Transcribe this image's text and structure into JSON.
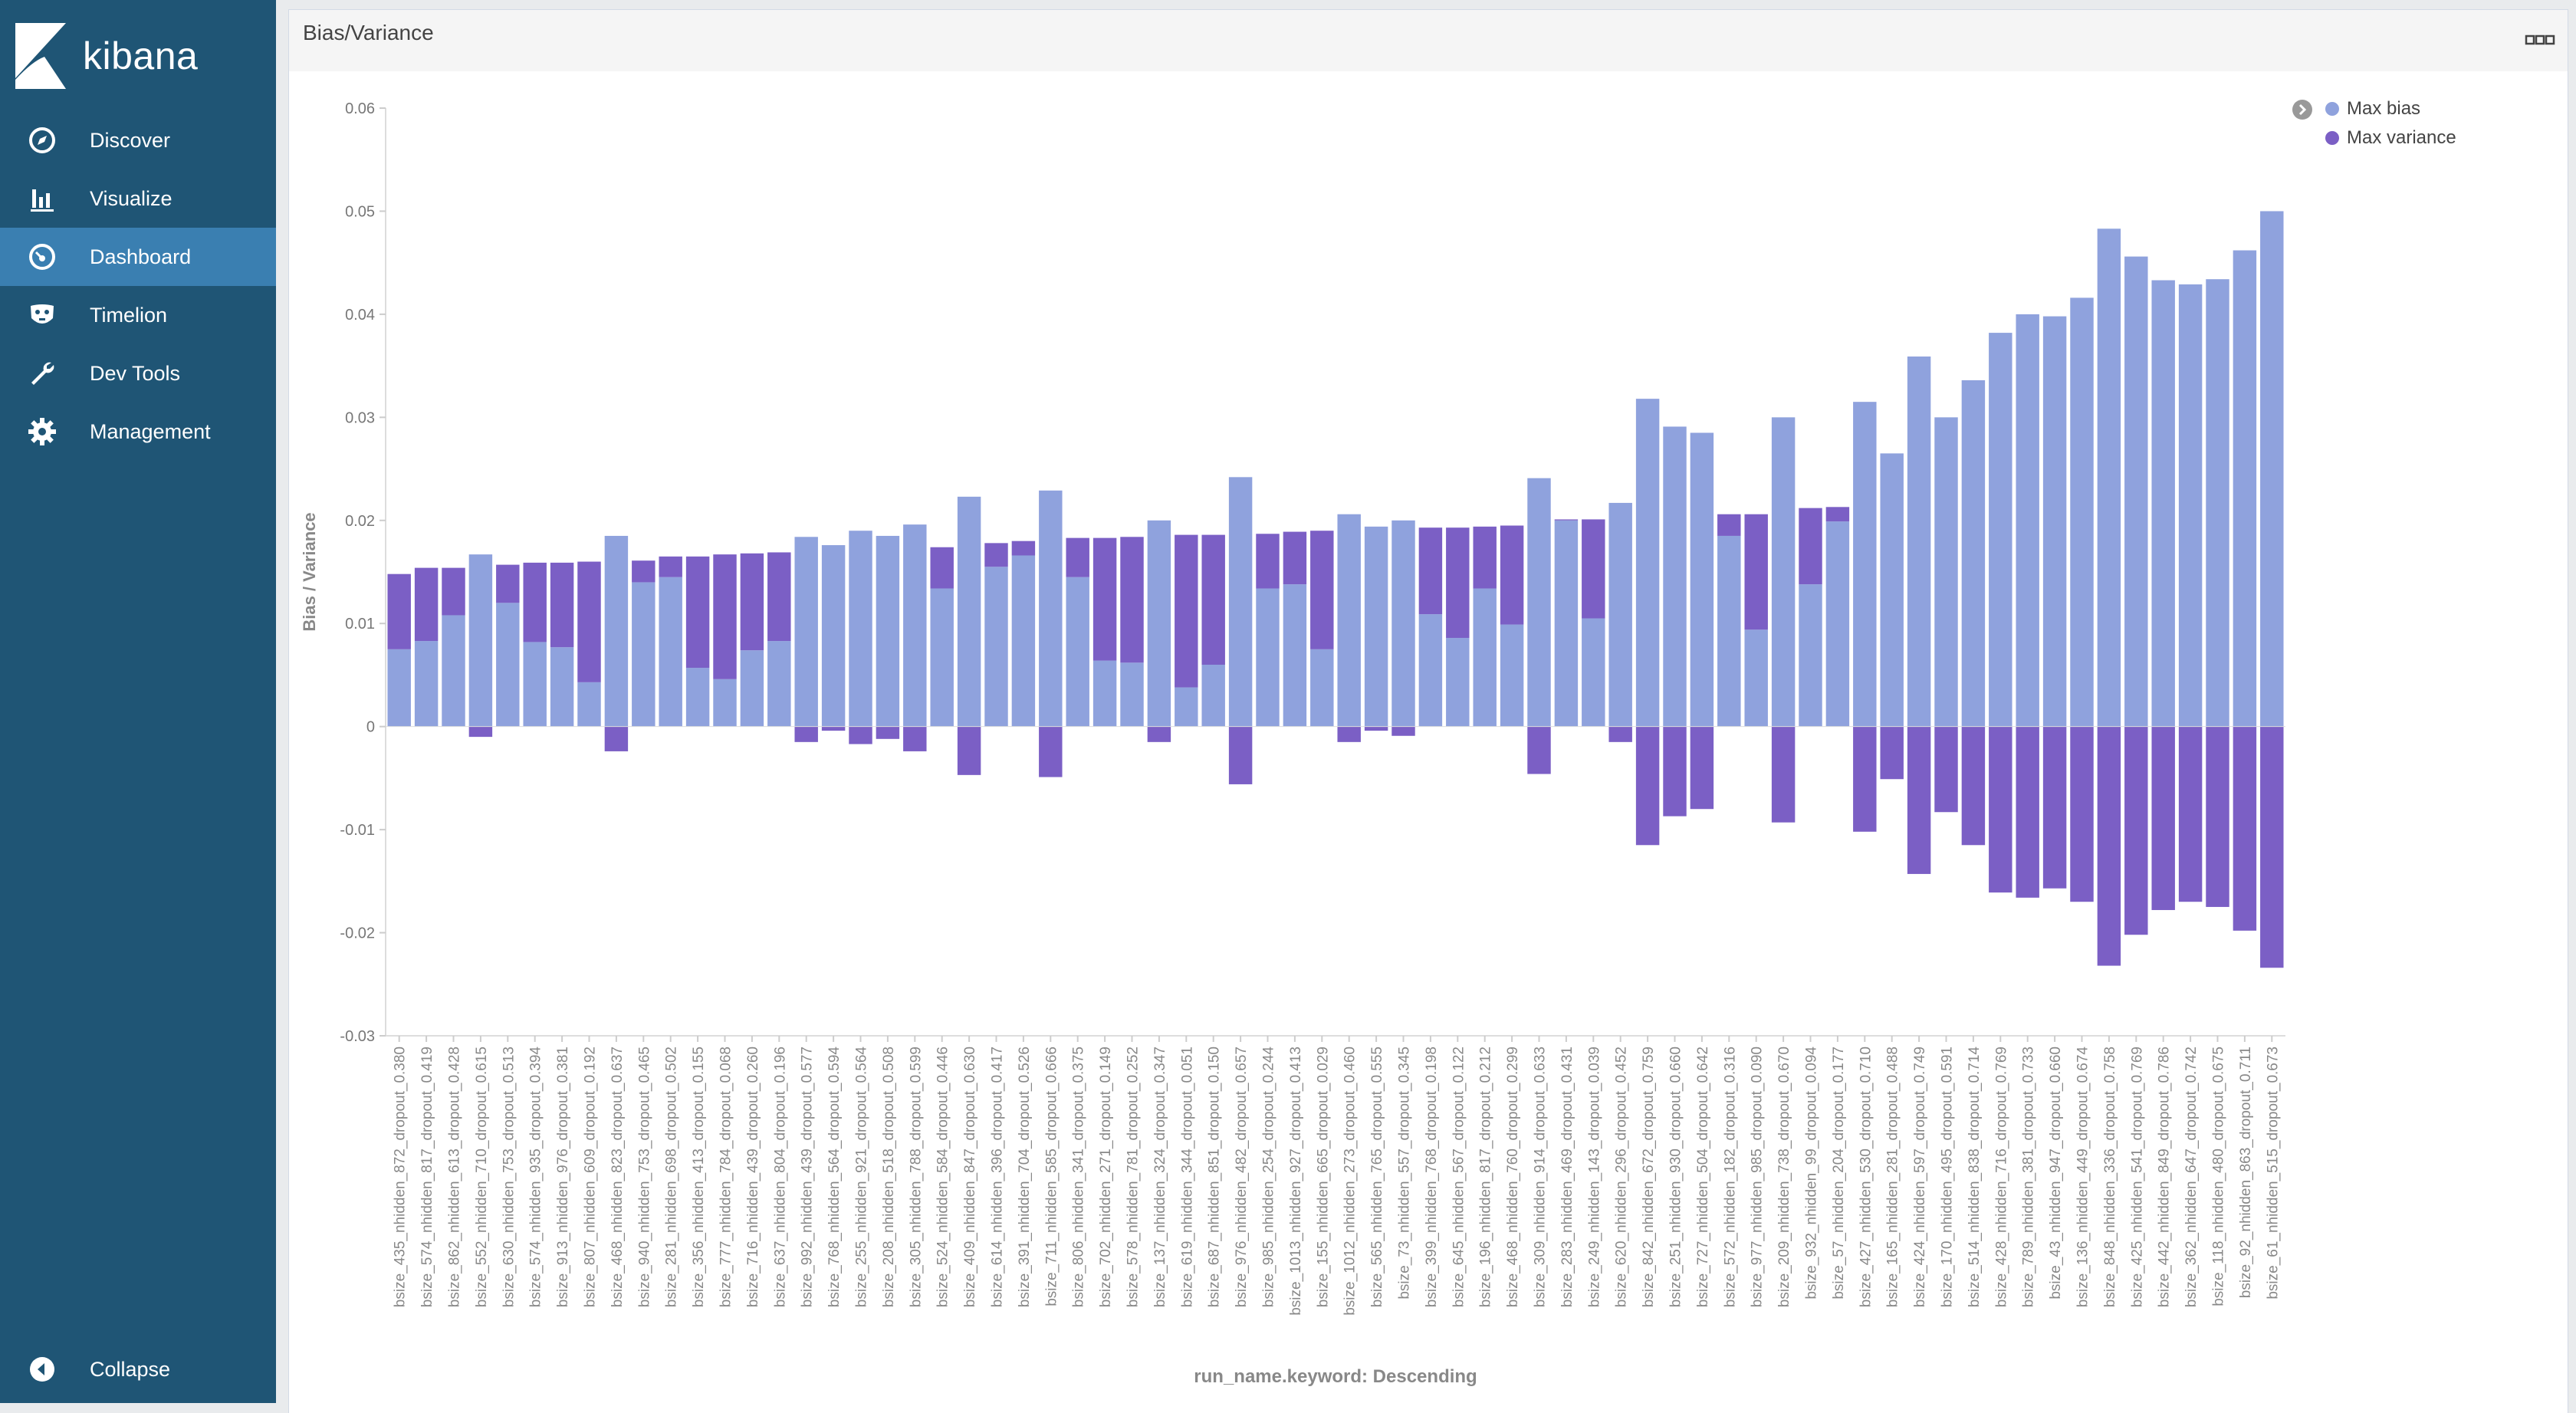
{
  "app": {
    "name": "kibana"
  },
  "sidebar": {
    "items": [
      {
        "label": "Discover",
        "icon": "compass-icon",
        "active": false
      },
      {
        "label": "Visualize",
        "icon": "bar-chart-icon",
        "active": false
      },
      {
        "label": "Dashboard",
        "icon": "dashboard-gauge-icon",
        "active": true
      },
      {
        "label": "Timelion",
        "icon": "timelion-mask-icon",
        "active": false
      },
      {
        "label": "Dev Tools",
        "icon": "wrench-icon",
        "active": false
      },
      {
        "label": "Management",
        "icon": "gear-icon",
        "active": false
      }
    ],
    "collapse_label": "Collapse"
  },
  "panel": {
    "title": "Bias/Variance"
  },
  "colors": {
    "max_bias": "#8fa2dd",
    "max_variance": "#7b5fc5",
    "sidebar": "#1f5575",
    "active": "#3a7fb1"
  },
  "chart_data": {
    "type": "bar",
    "title": "",
    "ylabel": "Bias / Variance",
    "xlabel": "run_name.keyword: Descending",
    "ylim": [
      -0.03,
      0.06
    ],
    "yticks": [
      0.06,
      0.05,
      0.04,
      0.03,
      0.02,
      0.01,
      0,
      -0.01,
      -0.02,
      -0.03
    ],
    "legend_position": "top-right",
    "categories": [
      "bsize_435_nhidden_872_dropout_0.380",
      "bsize_574_nhidden_817_dropout_0.419",
      "bsize_862_nhidden_613_dropout_0.428",
      "bsize_552_nhidden_710_dropout_0.615",
      "bsize_630_nhidden_753_dropout_0.513",
      "bsize_574_nhidden_935_dropout_0.394",
      "bsize_913_nhidden_976_dropout_0.381",
      "bsize_807_nhidden_609_dropout_0.192",
      "bsize_468_nhidden_823_dropout_0.637",
      "bsize_940_nhidden_753_dropout_0.465",
      "bsize_281_nhidden_698_dropout_0.502",
      "bsize_356_nhidden_413_dropout_0.155",
      "bsize_777_nhidden_784_dropout_0.068",
      "bsize_716_nhidden_439_dropout_0.260",
      "bsize_637_nhidden_804_dropout_0.196",
      "bsize_992_nhidden_439_dropout_0.577",
      "bsize_768_nhidden_564_dropout_0.594",
      "bsize_255_nhidden_921_dropout_0.564",
      "bsize_208_nhidden_518_dropout_0.508",
      "bsize_305_nhidden_788_dropout_0.599",
      "bsize_524_nhidden_584_dropout_0.446",
      "bsize_409_nhidden_847_dropout_0.630",
      "bsize_614_nhidden_396_dropout_0.417",
      "bsize_391_nhidden_704_dropout_0.526",
      "bsize_711_nhidden_585_dropout_0.666",
      "bsize_806_nhidden_341_dropout_0.375",
      "bsize_702_nhidden_271_dropout_0.149",
      "bsize_578_nhidden_781_dropout_0.252",
      "bsize_137_nhidden_324_dropout_0.347",
      "bsize_619_nhidden_344_dropout_0.051",
      "bsize_687_nhidden_851_dropout_0.150",
      "bsize_976_nhidden_482_dropout_0.657",
      "bsize_985_nhidden_254_dropout_0.244",
      "bsize_1013_nhidden_927_dropout_0.413",
      "bsize_155_nhidden_665_dropout_0.029",
      "bsize_1012_nhidden_273_dropout_0.460",
      "bsize_565_nhidden_765_dropout_0.555",
      "bsize_73_nhidden_557_dropout_0.345",
      "bsize_399_nhidden_768_dropout_0.198",
      "bsize_645_nhidden_567_dropout_0.122",
      "bsize_196_nhidden_817_dropout_0.212",
      "bsize_468_nhidden_760_dropout_0.299",
      "bsize_309_nhidden_914_dropout_0.633",
      "bsize_283_nhidden_469_dropout_0.431",
      "bsize_249_nhidden_143_dropout_0.039",
      "bsize_620_nhidden_296_dropout_0.452",
      "bsize_842_nhidden_672_dropout_0.759",
      "bsize_251_nhidden_930_dropout_0.660",
      "bsize_727_nhidden_504_dropout_0.642",
      "bsize_572_nhidden_182_dropout_0.316",
      "bsize_977_nhidden_985_dropout_0.090",
      "bsize_209_nhidden_738_dropout_0.670",
      "bsize_932_nhidden_99_dropout_0.094",
      "bsize_57_nhidden_204_dropout_0.177",
      "bsize_427_nhidden_530_dropout_0.710",
      "bsize_165_nhidden_281_dropout_0.488",
      "bsize_424_nhidden_597_dropout_0.749",
      "bsize_170_nhidden_495_dropout_0.591",
      "bsize_514_nhidden_838_dropout_0.714",
      "bsize_428_nhidden_716_dropout_0.769",
      "bsize_789_nhidden_381_dropout_0.733",
      "bsize_43_nhidden_947_dropout_0.660",
      "bsize_136_nhidden_449_dropout_0.674",
      "bsize_848_nhidden_336_dropout_0.758",
      "bsize_425_nhidden_541_dropout_0.769",
      "bsize_442_nhidden_849_dropout_0.786",
      "bsize_362_nhidden_647_dropout_0.742",
      "bsize_118_nhidden_480_dropout_0.675",
      "bsize_92_nhidden_863_dropout_0.711",
      "bsize_61_nhidden_515_dropout_0.673"
    ],
    "series": [
      {
        "name": "Max bias",
        "color": "#8fa2dd",
        "values": [
          0.0075,
          0.0083,
          0.0108,
          0.0167,
          0.012,
          0.0082,
          0.0077,
          0.0043,
          0.0185,
          0.014,
          0.0145,
          0.0057,
          0.0046,
          0.0074,
          0.0083,
          0.0184,
          0.0176,
          0.019,
          0.0185,
          0.0196,
          0.0134,
          0.0223,
          0.0155,
          0.0166,
          0.0229,
          0.0145,
          0.0064,
          0.0062,
          0.02,
          0.0038,
          0.006,
          0.0242,
          0.0134,
          0.0138,
          0.0075,
          0.0206,
          0.0194,
          0.02,
          0.0109,
          0.0086,
          0.0134,
          0.0099,
          0.0241,
          0.02,
          0.0105,
          0.0217,
          0.0318,
          0.0291,
          0.0285,
          0.0185,
          0.0094,
          0.03,
          0.0138,
          0.0199,
          0.0315,
          0.0265,
          0.0359,
          0.03,
          0.0336,
          0.0382,
          0.04,
          0.0398,
          0.0416,
          0.0483,
          0.0456,
          0.0433,
          0.0429,
          0.0434,
          0.0462,
          0.05
        ],
        "totals": [
          0.0148,
          0.0154,
          0.0154,
          0.0,
          0.0157,
          0.0159,
          0.0159,
          0.016,
          0.0,
          0.0161,
          0.0165,
          0.0165,
          0.0167,
          0.0168,
          0.0169,
          0.0,
          0.0,
          0.0,
          0.0,
          0.0,
          0.0174,
          0.0,
          0.0178,
          0.018,
          0.0,
          0.0183,
          0.0183,
          0.0184,
          0.0,
          0.0186,
          0.0186,
          0.0,
          0.0187,
          0.0189,
          0.019,
          0.0,
          0.0,
          0.0,
          0.0193,
          0.0193,
          0.0194,
          0.0195,
          0.0,
          0.0201,
          0.0201,
          0.0,
          0.0,
          0.0,
          0.0,
          0.0206,
          0.0206,
          0.0,
          0.0212,
          0.0213,
          0.0,
          0.0,
          0.0,
          0.0,
          0.0,
          0.0,
          0.0,
          0.0,
          0.0,
          0.0,
          0.0,
          0.0,
          0.0,
          0.0,
          0.0,
          0.0
        ]
      },
      {
        "name": "Max variance",
        "color": "#7b5fc5",
        "values": [
          0.0073,
          0.0071,
          0.0046,
          -0.001,
          0.0037,
          0.0077,
          0.0082,
          0.0117,
          -0.0024,
          0.0021,
          0.002,
          0.0108,
          0.0121,
          0.0094,
          0.0086,
          -0.0015,
          -0.0004,
          -0.0017,
          -0.0012,
          -0.0024,
          0.004,
          -0.0047,
          0.0023,
          0.0014,
          -0.0049,
          0.0038,
          0.0119,
          0.0122,
          -0.0015,
          0.0148,
          0.0126,
          -0.0056,
          0.0053,
          0.0051,
          0.0115,
          -0.0015,
          -0.0004,
          -0.0009,
          0.0084,
          0.0107,
          0.006,
          0.0096,
          -0.0046,
          0.0001,
          0.0096,
          -0.0015,
          -0.0115,
          -0.0087,
          -0.008,
          0.0021,
          0.0112,
          -0.0093,
          0.0074,
          0.0014,
          -0.0102,
          -0.0051,
          -0.0143,
          -0.0083,
          -0.0115,
          -0.0161,
          -0.0166,
          -0.0157,
          -0.017,
          -0.0232,
          -0.0202,
          -0.0178,
          -0.017,
          -0.0175,
          -0.0198,
          -0.0234
        ]
      }
    ]
  }
}
